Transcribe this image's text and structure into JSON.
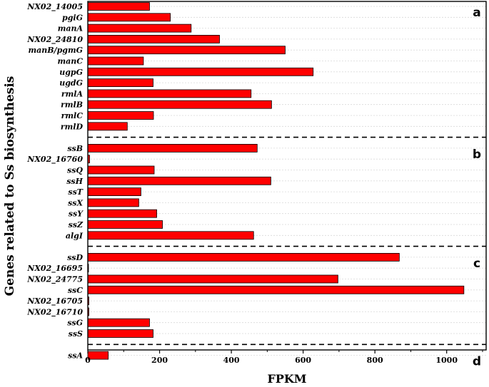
{
  "chart_data": {
    "type": "bar",
    "orientation": "horizontal",
    "xlabel": "FPKM",
    "ylabel": "Genes related to Ss biosynthesis",
    "xlim": [
      0,
      1110
    ],
    "xticks": [
      0,
      200,
      400,
      600,
      800,
      1000
    ],
    "grid": true,
    "bar_color": "#ff0000",
    "groups": [
      {
        "label": "a",
        "genes": [
          "NX02_14005",
          "pgiG",
          "manA",
          "NX02_24810",
          "manB/pgmG",
          "manC",
          "ugpG",
          "ugdG",
          "rmlA",
          "rmlB",
          "rmlC",
          "rmlD"
        ],
        "values": [
          172,
          230,
          288,
          367,
          550,
          155,
          628,
          182,
          455,
          512,
          183,
          110
        ]
      },
      {
        "label": "b",
        "genes": [
          "ssB",
          "NX02_16760",
          "ssQ",
          "ssH",
          "ssT",
          "ssX",
          "ssY",
          "ssZ",
          "algI"
        ],
        "values": [
          472,
          5,
          185,
          510,
          148,
          142,
          192,
          208,
          462
        ]
      },
      {
        "label": "c",
        "genes": [
          "ssD",
          "NX02_16695",
          "NX02_24775",
          "ssC",
          "NX02_16705",
          "NX02_16710",
          "ssG",
          "ssS"
        ],
        "values": [
          868,
          0,
          697,
          1048,
          3,
          3,
          172,
          182
        ]
      },
      {
        "label": "d",
        "genes": [
          "ssA"
        ],
        "values": [
          57
        ]
      }
    ]
  }
}
